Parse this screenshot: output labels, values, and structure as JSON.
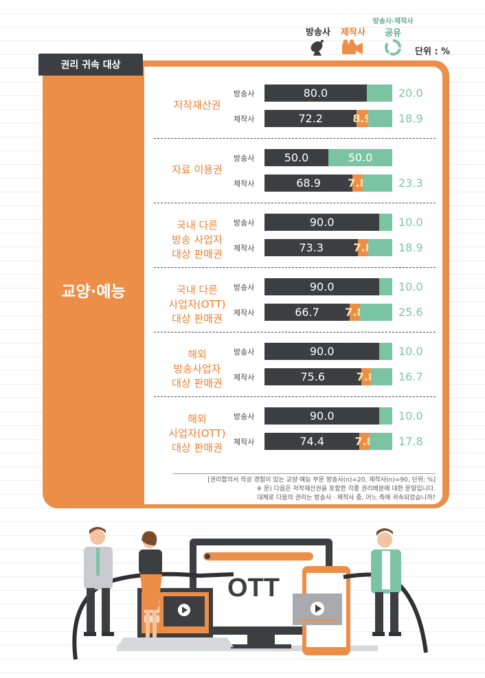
{
  "legend": {
    "broadcaster": "방송사",
    "producer": "제작사",
    "shared_top": "방송사·제작사",
    "shared_bottom": "공유",
    "unit": "단위 : %",
    "icons": [
      "satellite-dish-icon",
      "video-camera-icon",
      "recycle-circle-icon"
    ]
  },
  "tab_title": "권리 귀속 대상",
  "side_label": "교양·예능",
  "colors": {
    "broadcaster": "#3c3e41",
    "producer": "#ec8e48",
    "shared": "#7bc4a3"
  },
  "chart_data": {
    "type": "bar",
    "orientation": "horizontal",
    "stacked": true,
    "group": "교양·예능",
    "xlim": [
      0,
      100
    ],
    "series_names": [
      "방송사",
      "제작사",
      "방송사·제작사 공유"
    ],
    "categories": [
      {
        "lines": [
          "저작재산권"
        ],
        "rows": [
          {
            "label": "방송사",
            "broadcaster": 80.0,
            "producer": null,
            "shared": 20.0,
            "labels": [
              "80.0",
              "",
              "20.0"
            ]
          },
          {
            "label": "제작사",
            "broadcaster": 72.2,
            "producer": 8.9,
            "shared": 18.9,
            "labels": [
              "72.2",
              "8.9",
              "18.9"
            ]
          }
        ]
      },
      {
        "lines": [
          "자료 이용권"
        ],
        "rows": [
          {
            "label": "방송사",
            "broadcaster": 50.0,
            "producer": null,
            "shared": 50.0,
            "labels": [
              "50.0",
              "",
              "50.0"
            ]
          },
          {
            "label": "제작사",
            "broadcaster": 68.9,
            "producer": 7.8,
            "shared": 23.3,
            "labels": [
              "68.9",
              "7.8",
              "23.3"
            ]
          }
        ]
      },
      {
        "lines": [
          "국내 다른",
          "방송 사업자",
          "대상 판매권"
        ],
        "rows": [
          {
            "label": "방송사",
            "broadcaster": 90.0,
            "producer": null,
            "shared": 10.0,
            "labels": [
              "90.0",
              "",
              "10.0"
            ]
          },
          {
            "label": "제작사",
            "broadcaster": 73.3,
            "producer": 7.8,
            "shared": 18.9,
            "labels": [
              "73.3",
              "7.8",
              "18.9"
            ]
          }
        ]
      },
      {
        "lines": [
          "국내 다른",
          "사업자(OTT)",
          "대상 판매권"
        ],
        "rows": [
          {
            "label": "방송사",
            "broadcaster": 90.0,
            "producer": null,
            "shared": 10.0,
            "labels": [
              "90.0",
              "",
              "10.0"
            ]
          },
          {
            "label": "제작사",
            "broadcaster": 66.7,
            "producer": 7.8,
            "shared": 25.6,
            "labels": [
              "66.7",
              "7.8",
              "25.6"
            ]
          }
        ]
      },
      {
        "lines": [
          "해외",
          "방송사업자",
          "대상 판매권"
        ],
        "rows": [
          {
            "label": "방송사",
            "broadcaster": 90.0,
            "producer": null,
            "shared": 10.0,
            "labels": [
              "90.0",
              "",
              "10.0"
            ]
          },
          {
            "label": "제작사",
            "broadcaster": 75.6,
            "producer": 7.8,
            "shared": 16.7,
            "labels": [
              "75.6",
              "7.8",
              "16.7"
            ]
          }
        ]
      },
      {
        "lines": [
          "해외",
          "사업자(OTT)",
          "대상 판매권"
        ],
        "rows": [
          {
            "label": "방송사",
            "broadcaster": 90.0,
            "producer": null,
            "shared": 10.0,
            "labels": [
              "90.0",
              "",
              "10.0"
            ]
          },
          {
            "label": "제작사",
            "broadcaster": 74.4,
            "producer": 7.8,
            "shared": 17.8,
            "labels": [
              "74.4",
              "7.8",
              "17.8"
            ]
          }
        ]
      }
    ]
  },
  "notes": [
    "[권리합의서 작성 경험이 있는 교양·예능 부문 방송사(n)=20, 제작사(n)=90, 단위: %]",
    "※ 문) 다음은 저작재산권을 포함한 각종 권리배분에 대한 문항입니다.",
    "대체로 다음의 권리는 방송사 · 제작사 중, 어느 측에 귀속되었습니까?"
  ],
  "illustration": {
    "monitor_text": "OTT"
  }
}
